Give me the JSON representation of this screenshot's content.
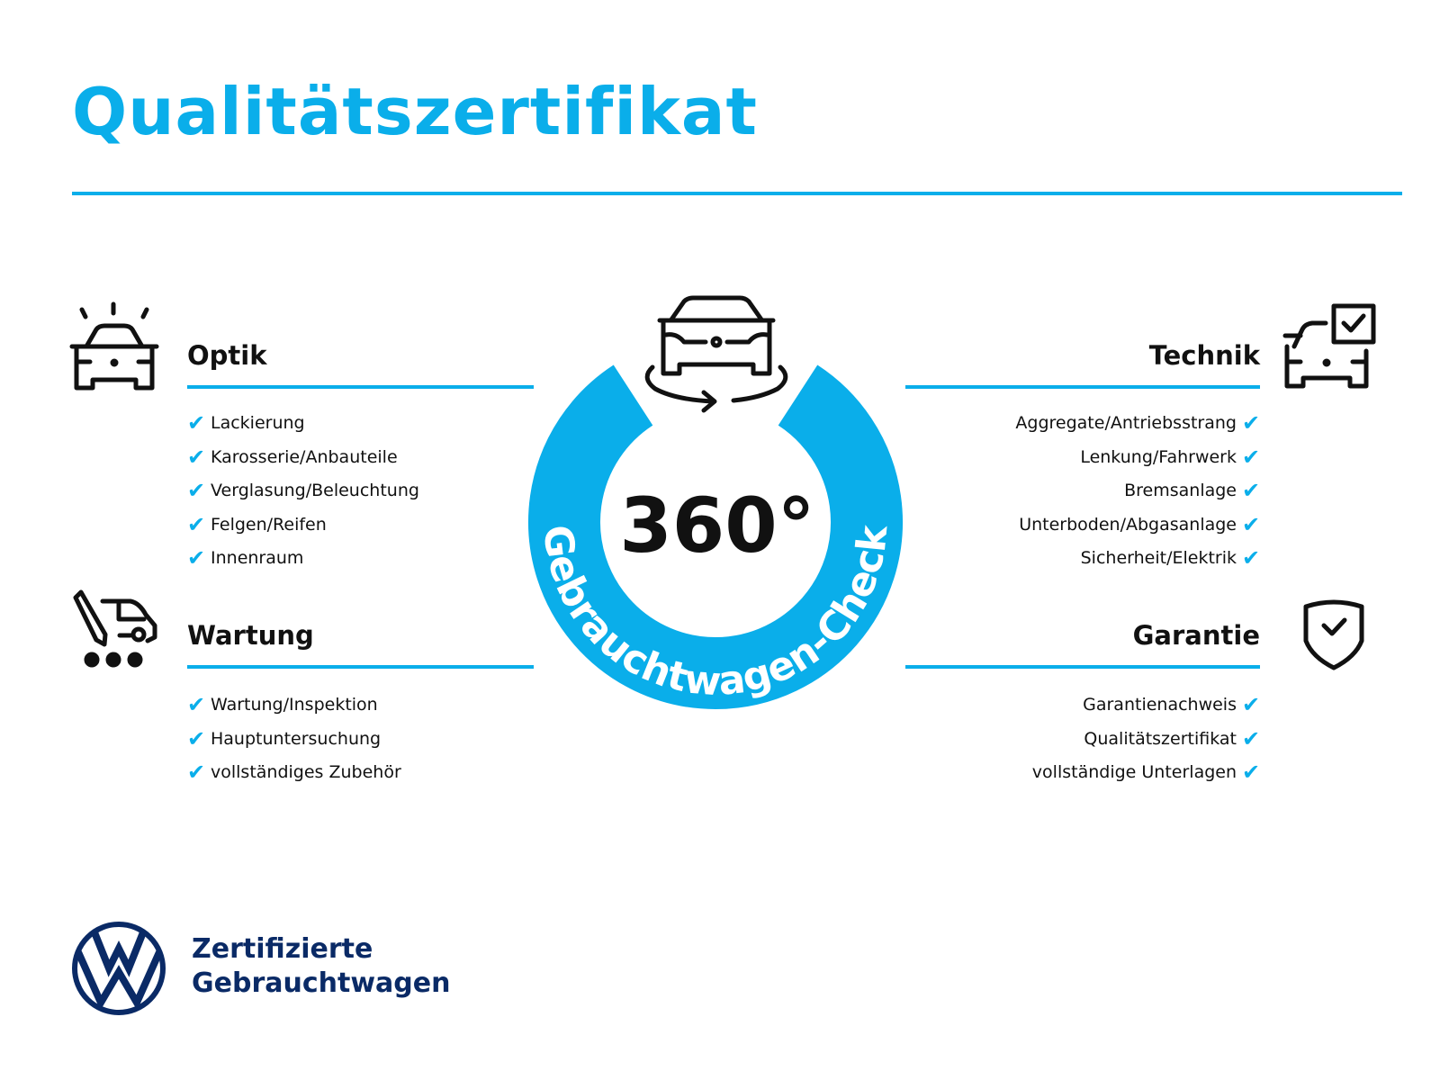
{
  "title": "Qualitätszertifikat",
  "colors": {
    "accent": "#0aaeea",
    "brand_navy": "#0a2a66",
    "text": "#111111"
  },
  "badge": {
    "number": "360°",
    "ring_text": "Gebrauchtwagen-Check",
    "icon": "car-rotate-icon"
  },
  "sections": {
    "optik": {
      "heading": "Optik",
      "icon": "car-sparkle-icon",
      "items": [
        "Lackierung",
        "Karosserie/Anbauteile",
        "Verglasung/Beleuchtung",
        "Felgen/Reifen",
        "Innenraum"
      ]
    },
    "wartung": {
      "heading": "Wartung",
      "icon": "service-van-icon",
      "items": [
        "Wartung/Inspektion",
        "Hauptuntersuchung",
        "vollständiges Zubehör"
      ]
    },
    "technik": {
      "heading": "Technik",
      "icon": "car-checklist-icon",
      "items": [
        "Aggregate/Antriebsstrang",
        "Lenkung/Fahrwerk",
        "Bremsanlage",
        "Unterboden/Abgasanlage",
        "Sicherheit/Elektrik"
      ]
    },
    "garantie": {
      "heading": "Garantie",
      "icon": "shield-check-icon",
      "items": [
        "Garantienachweis",
        "Qualitätszertifikat",
        "vollständige Unterlagen"
      ]
    }
  },
  "check_glyph": "✔",
  "brand": {
    "logo": "VW",
    "line1": "Zertifizierte",
    "line2": "Gebrauchtwagen"
  }
}
